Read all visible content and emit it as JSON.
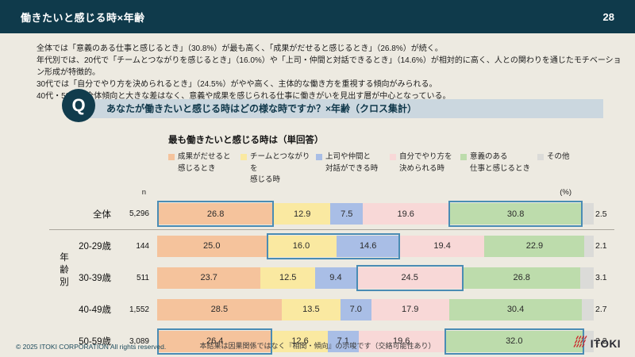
{
  "header": {
    "title": "働きたいと感じる時×年齢",
    "page_number": "28"
  },
  "summary": {
    "lines": [
      "全体では「意義のある仕事と感じるとき」（30.8%）が最も高く、「成果がだせると感じるとき」（26.8%）が続く。",
      "年代別では、20代で「チームとつながりを感じるとき」（16.0%）や「上司・仲間と対話できるとき」（14.6%）が相対的に高く、人との関わりを通じたモチベーション形成が特徴的。",
      "30代では「自分でやり方を決められるとき」（24.5%）がやや高く、主体的な働き方を重視する傾向がみられる。",
      "40代・50代は全体傾向と大きな差はなく、意義や成果を感じられる仕事に働きがいを見出す層が中心となっている。"
    ]
  },
  "question": {
    "q_mark": "Q",
    "text": "あなたが働きたいと感じる時はどの様な時ですか？×年齢（クロス集計）"
  },
  "chart_data": {
    "type": "bar",
    "stacked": true,
    "orientation": "horizontal",
    "title": "最も働きたいと感じる時は（単回答）",
    "n_header": "n",
    "unit_label": "(%)",
    "group_label": "年齢別",
    "xlim": [
      0,
      100
    ],
    "series_labels": [
      "成果がだせると感じるとき",
      "チームとつながりを感じる時",
      "上司や仲間と対話ができる時",
      "自分でやり方を決められる時",
      "意義のある仕事と感じるとき",
      "その他"
    ],
    "legend": [
      {
        "line1": "成果がだせると",
        "line2": "感じるとき",
        "color": "#f5c39c"
      },
      {
        "line1": "チームとつながりを",
        "line2": "感じる時",
        "color": "#fae9a1"
      },
      {
        "line1": "上司や仲間と",
        "line2": "対話ができる時",
        "color": "#a9bee6"
      },
      {
        "line1": "自分でやり方を",
        "line2": "決められる時",
        "color": "#f8d8d7"
      },
      {
        "line1": "意義のある",
        "line2": "仕事と感じるとき",
        "color": "#bddcac"
      },
      {
        "line1": "その他",
        "line2": "",
        "color": "#dbdbd8"
      }
    ],
    "categories": [
      "全体",
      "20-29歳",
      "30-39歳",
      "40-49歳",
      "50-59歳"
    ],
    "rows": [
      {
        "label": "全体",
        "n": "5,296",
        "values": [
          26.8,
          12.9,
          7.5,
          19.6,
          30.8,
          2.5
        ],
        "highlights": [
          {
            "from": 0,
            "to": 0
          },
          {
            "from": 4,
            "to": 4
          }
        ]
      },
      {
        "label": "20-29歳",
        "n": "144",
        "values": [
          25.0,
          16.0,
          14.6,
          19.4,
          22.9,
          2.1
        ],
        "highlights": [
          {
            "from": 1,
            "to": 2
          }
        ]
      },
      {
        "label": "30-39歳",
        "n": "511",
        "values": [
          23.7,
          12.5,
          9.4,
          24.5,
          26.8,
          3.1
        ],
        "highlights": [
          {
            "from": 3,
            "to": 3
          }
        ]
      },
      {
        "label": "40-49歳",
        "n": "1,552",
        "values": [
          28.5,
          13.5,
          7.0,
          17.9,
          30.4,
          2.7
        ],
        "highlights": []
      },
      {
        "label": "50-59歳",
        "n": "3,089",
        "values": [
          26.4,
          12.6,
          7.1,
          19.6,
          32.0,
          2.2
        ],
        "highlights": [
          {
            "from": 0,
            "to": 0
          },
          {
            "from": 4,
            "to": 4
          }
        ]
      }
    ],
    "highlight_border_color": "#4a8cb4"
  },
  "footer": {
    "copyright": "© 2025 ITOKI CORPORATION  All rights reserved.",
    "note": "本結果は因果関係ではなく『相関・傾向』の示唆です（交絡可能性あり）",
    "logo_text": "ITOKI"
  },
  "colors": {
    "header_bg": "#0f3a4b",
    "page_bg": "#edeae1",
    "question_band": "#cbd7df",
    "q_circle": "#113c4d",
    "highlight_border": "#4a8cb4",
    "logo_red": "#cc2229"
  }
}
